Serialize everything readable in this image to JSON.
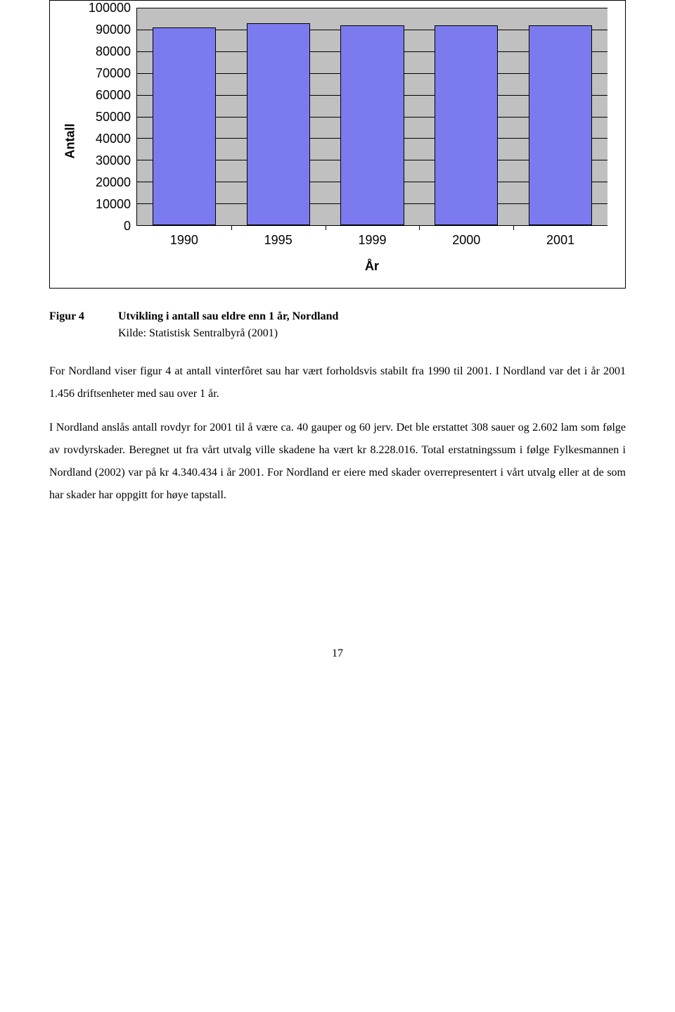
{
  "chart": {
    "type": "bar",
    "y_label": "Antall",
    "x_label": "År",
    "categories": [
      "1990",
      "1995",
      "1999",
      "2000",
      "2001"
    ],
    "values": [
      91000,
      93000,
      92000,
      92000,
      92000
    ],
    "y_ticks": [
      "100000",
      "90000",
      "80000",
      "70000",
      "60000",
      "50000",
      "40000",
      "30000",
      "20000",
      "10000",
      "0"
    ],
    "y_max": 100000,
    "bar_color": "#7b7bef",
    "plot_bg": "#c0c0c0",
    "border_color": "#000000",
    "axis_font": "Arial",
    "tick_fontsize": 18,
    "label_fontsize": 18,
    "label_fontweight": "700"
  },
  "caption": {
    "label": "Figur 4",
    "title": "Utvikling i antall sau eldre enn 1 år, Nordland",
    "source": "Kilde: Statistisk Sentralbyrå (2001)"
  },
  "body": {
    "p1": "For Nordland viser figur 4 at antall vinterfôret sau har vært forholdsvis stabilt fra 1990 til 2001. I Nordland var det i år 2001 1.456 driftsenheter med sau over 1 år.",
    "p2": "I Nordland anslås antall rovdyr for 2001 til å være ca. 40 gauper og 60 jerv. Det ble erstattet 308 sauer og 2.602 lam som følge av rovdyrskader. Beregnet ut fra vårt utvalg ville skadene ha vært kr 8.228.016. Total erstatningssum i følge Fylkesmannen i Nordland (2002) var på kr 4.340.434 i år 2001. For Nordland er eiere med skader overrepresentert i vårt utvalg eller at de som har skader har oppgitt for høye tapstall."
  },
  "page_number": "17"
}
